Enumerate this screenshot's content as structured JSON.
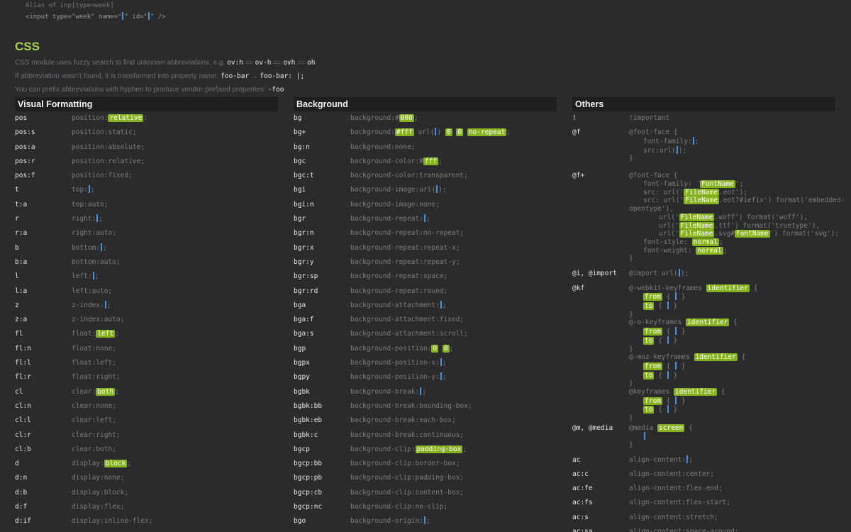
{
  "top": {
    "alias_line": "Alias of inp[type=week]",
    "code_line_pre": "<input type=\"week\" name=\"",
    "code_line_mid": "\" id=\"",
    "code_line_post": "\" />"
  },
  "section_title": "CSS",
  "intro": {
    "line1_text": "CSS module uses fuzzy search to find unknown abbreviations, e.g.",
    "line1_codes": [
      "ov:h",
      "ov-h",
      "ovh",
      "oh"
    ],
    "line1_eq": "==",
    "line2_text": "If abbreviation wasn’t found, it is transformed into property name:",
    "line2_code1": "foo-bar",
    "line2_arrow": "→",
    "line2_code2": "foo-bar: |;",
    "line3_text": "You can prefix abbreviations with hyphen to produce vendor-prefixed properties:",
    "line3_code": "-foo"
  },
  "columns": {
    "visual": {
      "title": "Visual Formatting",
      "rows": [
        {
          "a": "pos",
          "e": "position:",
          "h": "relative",
          "s": ";"
        },
        {
          "a": "pos:s",
          "e": "position:static;"
        },
        {
          "a": "pos:a",
          "e": "position:absolute;"
        },
        {
          "a": "pos:r",
          "e": "position:relative;"
        },
        {
          "a": "pos:f",
          "e": "position:fixed;"
        },
        {
          "a": "t",
          "e": "top:",
          "c": true,
          "s": ";"
        },
        {
          "a": "t:a",
          "e": "top:auto;"
        },
        {
          "a": "r",
          "e": "right:",
          "c": true,
          "s": ";"
        },
        {
          "a": "r:a",
          "e": "right:auto;"
        },
        {
          "a": "b",
          "e": "bottom:",
          "c": true,
          "s": ";"
        },
        {
          "a": "b:a",
          "e": "bottom:auto;"
        },
        {
          "a": "l",
          "e": "left:",
          "c": true,
          "s": ";"
        },
        {
          "a": "l:a",
          "e": "left:auto;"
        },
        {
          "a": "z",
          "e": "z-index:",
          "c": true,
          "s": ";"
        },
        {
          "a": "z:a",
          "e": "z-index:auto;"
        },
        {
          "a": "fl",
          "e": "float:",
          "h": "left",
          "s": ";"
        },
        {
          "a": "fl:n",
          "e": "float:none;"
        },
        {
          "a": "fl:l",
          "e": "float:left;"
        },
        {
          "a": "fl:r",
          "e": "float:right;"
        },
        {
          "a": "cl",
          "e": "clear:",
          "h": "both",
          "s": ";"
        },
        {
          "a": "cl:n",
          "e": "clear:none;"
        },
        {
          "a": "cl:l",
          "e": "clear:left;"
        },
        {
          "a": "cl:r",
          "e": "clear:right;"
        },
        {
          "a": "cl:b",
          "e": "clear:both;"
        },
        {
          "a": "d",
          "e": "display:",
          "h": "block",
          "s": ";"
        },
        {
          "a": "d:n",
          "e": "display:none;"
        },
        {
          "a": "d:b",
          "e": "display:block;"
        },
        {
          "a": "d:f",
          "e": "display:flex;"
        },
        {
          "a": "d:if",
          "e": "display:inline-flex;"
        }
      ]
    },
    "background": {
      "title": "Background",
      "rows": [
        {
          "a": "bg",
          "e": "background:#",
          "h": "000",
          "s": ";"
        },
        {
          "a": "bg+",
          "e": "background:",
          "special": "bgplus"
        },
        {
          "a": "bg:n",
          "e": "background:none;"
        },
        {
          "a": "bgc",
          "e": "background-color:#",
          "h": "fff",
          "s": ";"
        },
        {
          "a": "bgc:t",
          "e": "background-color:transparent;"
        },
        {
          "a": "bgi",
          "e": "background-image:url(",
          "c": true,
          "s": ");"
        },
        {
          "a": "bgi:n",
          "e": "background-image:none;"
        },
        {
          "a": "bgr",
          "e": "background-repeat:",
          "c": true,
          "s": ";"
        },
        {
          "a": "bgr:n",
          "e": "background-repeat:no-repeat;"
        },
        {
          "a": "bgr:x",
          "e": "background-repeat:repeat-x;"
        },
        {
          "a": "bgr:y",
          "e": "background-repeat:repeat-y;"
        },
        {
          "a": "bgr:sp",
          "e": "background-repeat:space;"
        },
        {
          "a": "bgr:rd",
          "e": "background-repeat:round;"
        },
        {
          "a": "bga",
          "e": "background-attachment:",
          "c": true,
          "s": ";"
        },
        {
          "a": "bga:f",
          "e": "background-attachment:fixed;"
        },
        {
          "a": "bga:s",
          "e": "background-attachment:scroll;"
        },
        {
          "a": "bgp",
          "e": "background-position:",
          "special": "bgp"
        },
        {
          "a": "bgpx",
          "e": "background-position-x:",
          "c": true,
          "s": ";"
        },
        {
          "a": "bgpy",
          "e": "background-position-y:",
          "c": true,
          "s": ";"
        },
        {
          "a": "bgbk",
          "e": "background-break:",
          "c": true,
          "s": ";"
        },
        {
          "a": "bgbk:bb",
          "e": "background-break:bounding-box;"
        },
        {
          "a": "bgbk:eb",
          "e": "background-break:each-box;"
        },
        {
          "a": "bgbk:c",
          "e": "background-break:continuous;"
        },
        {
          "a": "bgcp",
          "e": "background-clip:",
          "h": "padding-box",
          "s": ";"
        },
        {
          "a": "bgcp:bb",
          "e": "background-clip:border-box;"
        },
        {
          "a": "bgcp:pb",
          "e": "background-clip:padding-box;"
        },
        {
          "a": "bgcp:cb",
          "e": "background-clip:content-box;"
        },
        {
          "a": "bgcp:nc",
          "e": "background-clip:no-clip;"
        },
        {
          "a": "bgo",
          "e": "background-origin:",
          "c": true,
          "s": ";"
        }
      ]
    },
    "others": {
      "title": "Others",
      "bgplus": {
        "pre": "background:",
        "h1": "#fff",
        "mid": " url(",
        "post": ")",
        "h2": "0",
        "h3": "0",
        "h4": "no-repeat",
        "s": ";"
      },
      "bgp": {
        "h1": "0",
        "h2": "0",
        "s": ";"
      },
      "rows": [
        {
          "a": "!",
          "e": "!important"
        },
        {
          "a": "@f",
          "type": "ff"
        },
        {
          "a": "@f+",
          "type": "ffplus"
        },
        {
          "a": "@i, @import",
          "e": "@import url(",
          "c": true,
          "s": ");"
        },
        {
          "a": "@kf",
          "type": "kf"
        },
        {
          "a": "@m, @media",
          "type": "media"
        },
        {
          "a": "ac",
          "e": "align-content:",
          "c": true,
          "s": ";"
        },
        {
          "a": "ac:c",
          "e": "align-content:center;"
        },
        {
          "a": "ac:fe",
          "e": "align-content:flex-end;"
        },
        {
          "a": "ac:fs",
          "e": "align-content:flex-start;"
        },
        {
          "a": "ac:s",
          "e": "align-content:stretch;"
        },
        {
          "a": "ac:sa",
          "e": "align-content:space-around;"
        }
      ],
      "ff": {
        "l1": "@font-face {",
        "l2": "font-family:",
        "l3": "src:url(",
        "l3s": ");",
        "l4": "}"
      },
      "ffplus": {
        "l1": "@font-face {",
        "l2a": "font-family: '",
        "name": "FontName",
        "l2b": "';",
        "l3a": "src: url('",
        "file": "FileName",
        "l3b": ".eot');",
        "l4a": "src: url('",
        "l4b": ".eot?#iefix') format('embedded-",
        "l4c": "opentype'),",
        "l5a": "url('",
        "l5b": ".woff') format('woff'),",
        "l6a": "url('",
        "l6b": ".ttf') format('truetype'),",
        "l7a": "url('",
        "l7b": ".svg#",
        "l7c": "') format('svg');",
        "l8a": "font-style: ",
        "normal": "normal",
        "l8b": ";",
        "l9a": "font-weight: ",
        "l9b": ";",
        "l10": "}"
      },
      "kf": {
        "blocks": [
          "@-webkit-keyframes",
          "@-o-keyframes",
          "@-moz-keyframes",
          "@keyframes"
        ],
        "identifier": "identifier",
        "open": " {",
        "from": "from",
        "to": "to",
        "brace_open": " { ",
        "brace_close": " }",
        "close": "}"
      },
      "media": {
        "l1a": "@media ",
        "screen": "screen",
        "l1b": " {",
        "l3": "}"
      }
    }
  }
}
